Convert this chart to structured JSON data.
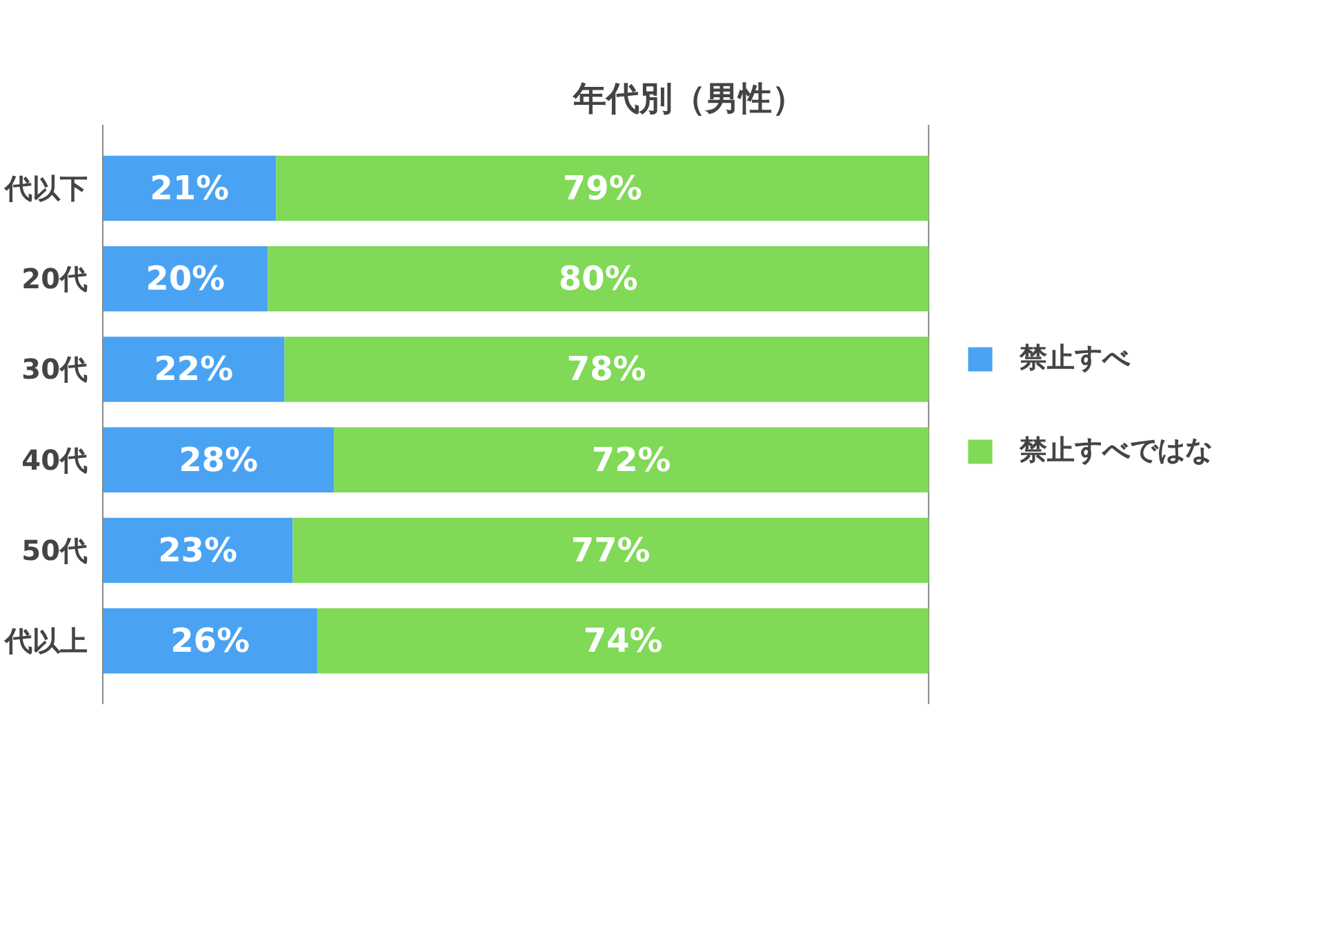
{
  "chart_data": {
    "type": "bar",
    "title": "年代別（男性）",
    "orientation": "horizontal",
    "stacked": true,
    "legend": "right",
    "grid": false,
    "categories": [
      "代以下",
      "20代",
      "30代",
      "40代",
      "50代",
      "代以上"
    ],
    "series": [
      {
        "name": "禁止すべ",
        "color": "#4aa3f2",
        "values": [
          21,
          20,
          22,
          28,
          23,
          26
        ],
        "value_labels": [
          "21%",
          "20%",
          "22%",
          "28%",
          "23%",
          "26%"
        ]
      },
      {
        "name": "禁止すべではな",
        "color": "#80d957",
        "values": [
          79,
          80,
          78,
          72,
          77,
          74
        ],
        "value_labels": [
          "79%",
          "80%",
          "78%",
          "72%",
          "77%",
          "74%"
        ]
      }
    ]
  }
}
